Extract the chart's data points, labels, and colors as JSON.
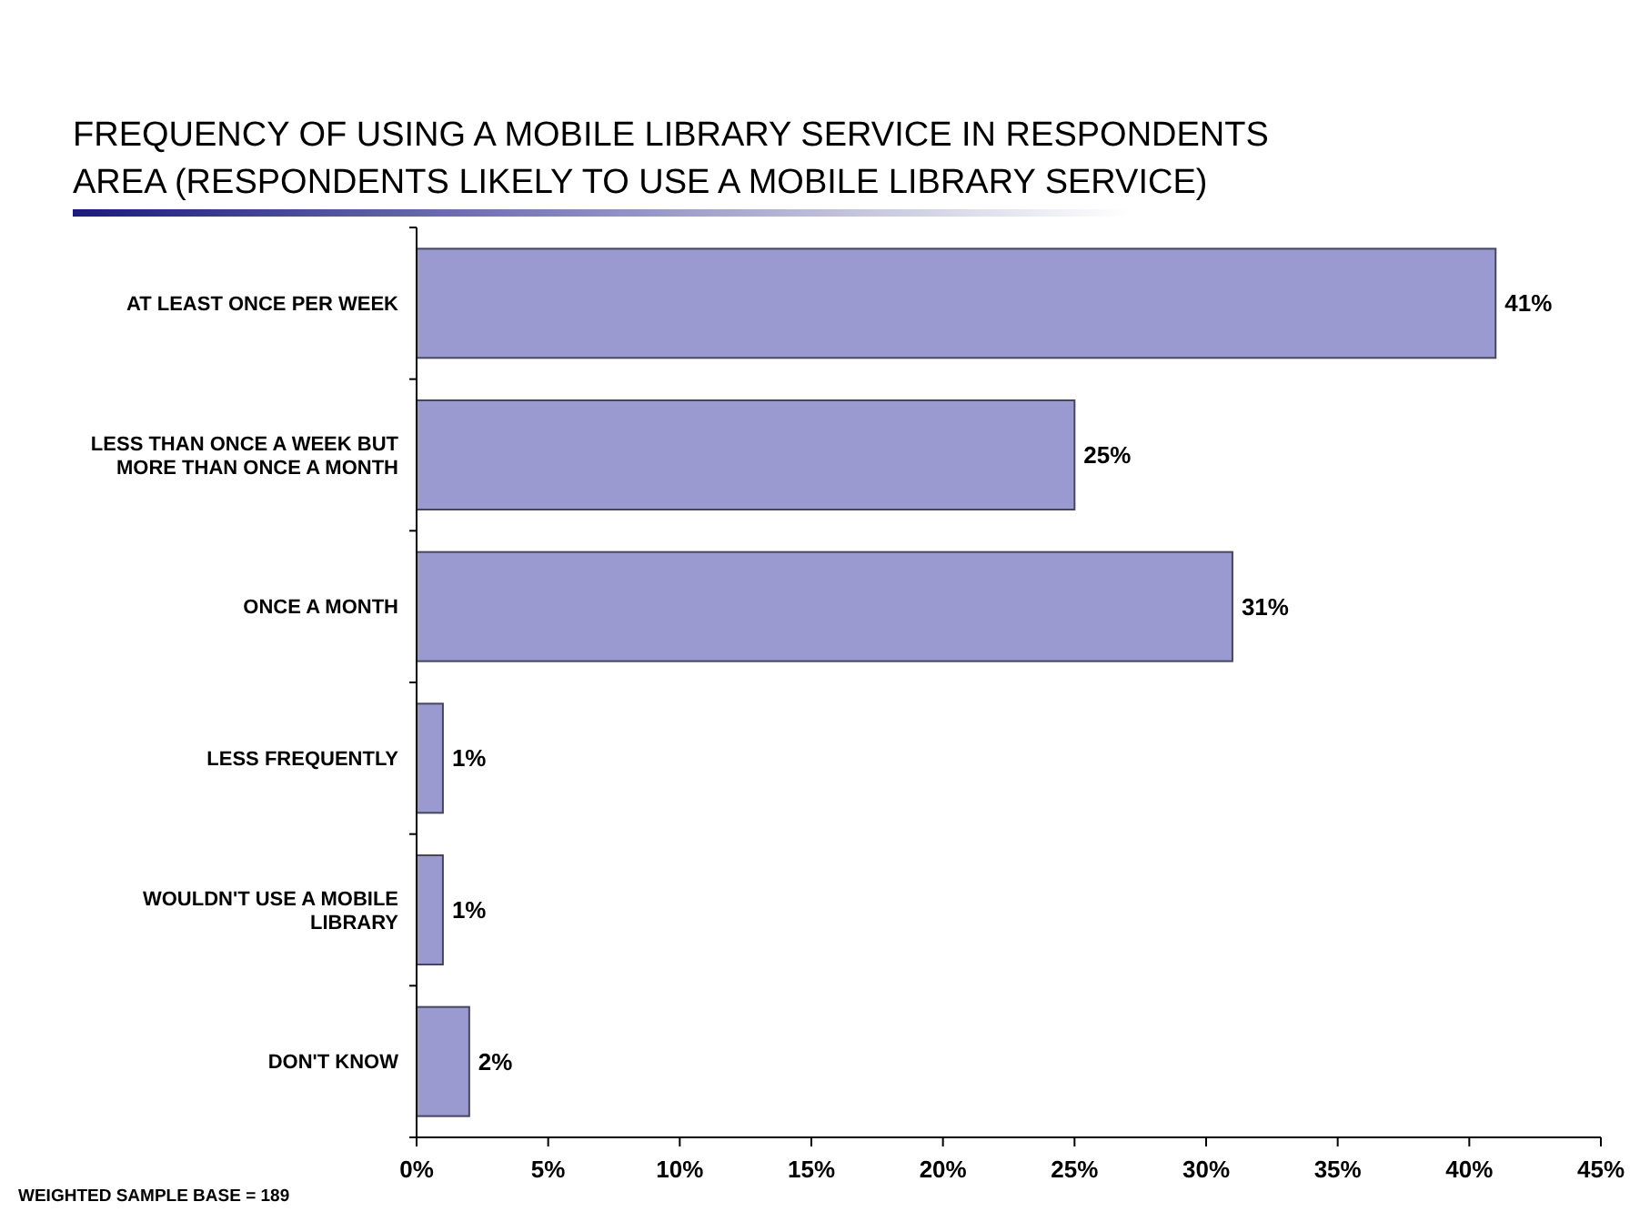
{
  "chart_data": {
    "type": "bar",
    "orientation": "horizontal",
    "title": "FREQUENCY OF USING A MOBILE LIBRARY SERVICE IN RESPONDENTS AREA  (RESPONDENTS LIKELY TO USE A MOBILE LIBRARY SERVICE)",
    "categories": [
      "AT LEAST ONCE PER WEEK",
      "LESS THAN ONCE A WEEK BUT MORE THAN ONCE A MONTH",
      "ONCE A MONTH",
      "LESS FREQUENTLY",
      "WOULDN'T USE A MOBILE LIBRARY",
      "DON'T KNOW"
    ],
    "values": [
      41,
      25,
      31,
      1,
      1,
      2
    ],
    "value_labels": [
      "41%",
      "25%",
      "31%",
      "1%",
      "1%",
      "2%"
    ],
    "color": "#9a9ad0",
    "xlim": [
      0,
      45
    ],
    "xticks": [
      {
        "value": 0,
        "label": "0%"
      },
      {
        "value": 5,
        "label": "5%"
      },
      {
        "value": 10,
        "label": "10%"
      },
      {
        "value": 15,
        "label": "15%"
      },
      {
        "value": 20,
        "label": "20%"
      },
      {
        "value": 25,
        "label": "25%"
      },
      {
        "value": 30,
        "label": "30%"
      },
      {
        "value": 35,
        "label": "35%"
      },
      {
        "value": 40,
        "label": "40%"
      },
      {
        "value": 45,
        "label": "45%"
      }
    ],
    "annotations": [
      "WEIGHTED SAMPLE BASE = 189"
    ],
    "grid": false
  }
}
